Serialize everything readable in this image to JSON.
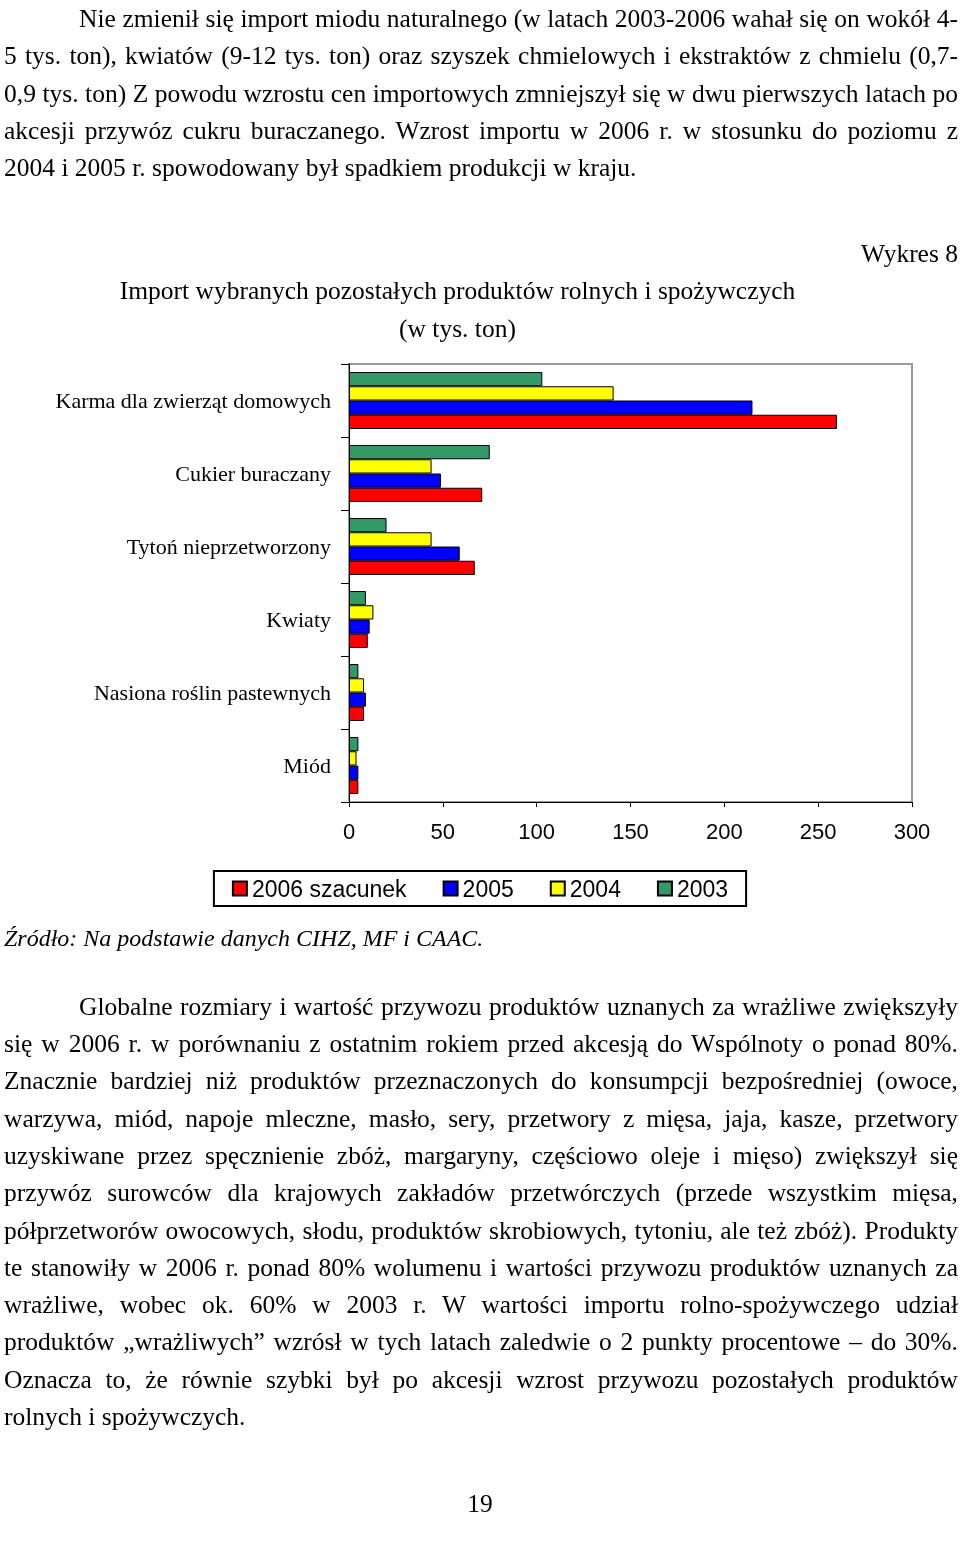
{
  "chart_data": {
    "type": "bar",
    "orientation": "horizontal",
    "title": "Import wybranych pozostałych produktów rolnych i spożywczych\n(w tys. ton)",
    "subtitle": "Wykres 8",
    "annotations": [
      "Nie zmienił się import miodu naturalnego (w latach 2003-2006 wahał się on wokół 4-5 tys. ton), kwiatów (9-12 tys. ton) oraz szyszek chmielowych i ekstraktów z chmielu (0,7-0,9 tys. ton) Z powodu wzrostu cen importowych zmniejszył się w dwu pierwszych latach po akcesji przywóz cukru buraczanego. Wzrost importu w 2006 r. w stosunku do poziomu z 2004 i 2005 r. spowodowany był spadkiem produkcji w kraju.",
      "Źródło: Na podstawie danych CIHZ, MF i CAAC.",
      "Globalne rozmiary i wartość przywozu produktów uznanych za wrażliwe zwiększyły się w 2006 r. w porównaniu z ostatnim rokiem przed akcesją do Wspólnoty o ponad 80%. Znacznie bardziej niż produktów przeznaczonych do konsumpcji bezpośredniej (owoce, warzywa, miód, napoje mleczne, masło, sery, przetwory z mięsa, jaja, kasze, przetwory uzyskiwane przez spęcznienie zbóż, margaryny, częściowo oleje i mięso) zwiększył się przywóz surowców dla krajowych zakładów przetwórczych (przede wszystkim mięsa, półprzetworów owocowych, słodu, produktów skrobiowych, tytoniu, ale też zbóż). Produkty te stanowiły w 2006 r. ponad 80% wolumenu i wartości przywozu produktów uznanych za wrażliwe, wobec ok. 60% w 2003 r. W wartości importu rolno-spożywczego udział produktów „wrażliwych” wzrósł w tych latach zaledwie o 2 punkty procentowe – do 30%. Oznacza to, że równie szybki był po akcesji wzrost przywozu pozostałych produktów rolnych i spożywczych.",
      "19"
    ],
    "categories": [
      "Karma dla zwierząt domowych",
      "Cukier buraczany",
      "Tytoń nieprzetworzony",
      "Kwiaty",
      "Nasiona roślin pastewnych",
      "Miód"
    ],
    "series": [
      {
        "name": "2006 szacunek",
        "color": "#ff0000",
        "values": [
          260,
          71,
          67,
          10,
          8,
          5
        ]
      },
      {
        "name": "2005",
        "color": "#0000ff",
        "values": [
          215,
          49,
          59,
          11,
          9,
          5
        ]
      },
      {
        "name": "2004",
        "color": "#ffff00",
        "values": [
          141,
          44,
          44,
          13,
          8,
          4
        ]
      },
      {
        "name": "2003",
        "color": "#339966",
        "values": [
          103,
          75,
          20,
          9,
          5,
          5
        ]
      }
    ],
    "xlim": [
      0,
      300
    ],
    "xticks": [
      0,
      50,
      100,
      150,
      200,
      250,
      300
    ],
    "grid": false,
    "legend": "bottom"
  }
}
